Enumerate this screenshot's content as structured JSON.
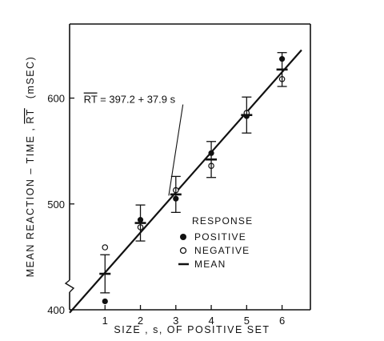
{
  "chart_data": {
    "type": "scatter",
    "xlabel": "SIZE , s, OF POSITIVE SET",
    "ylabel": "MEAN REACTION – TIME ,",
    "ylabel_symbol": "RT",
    "ylabel_unit": "(mSEC)",
    "xlim": [
      0,
      6.8
    ],
    "ylim": [
      400,
      670
    ],
    "x_ticks": [
      1,
      2,
      3,
      4,
      5,
      6
    ],
    "y_ticks": [
      400,
      500,
      600
    ],
    "grid": false,
    "axis_break_y": true,
    "series": [
      {
        "name": "POSITIVE",
        "marker": "filled-circle",
        "x": [
          1,
          2,
          3,
          4,
          5,
          6
        ],
        "y": [
          408,
          485,
          505,
          548,
          583,
          637
        ]
      },
      {
        "name": "NEGATIVE",
        "marker": "open-circle",
        "x": [
          1,
          2,
          3,
          4,
          5,
          6
        ],
        "y": [
          459,
          478,
          513,
          536,
          586,
          618
        ]
      },
      {
        "name": "MEAN",
        "marker": "dash",
        "x": [
          1,
          2,
          3,
          4,
          5,
          6
        ],
        "y": [
          434,
          482,
          509,
          542,
          584,
          627
        ],
        "error": [
          18,
          17,
          17,
          17,
          17,
          16
        ]
      }
    ],
    "fit_line": {
      "intercept": 397.2,
      "slope": 37.9,
      "x_range": [
        0,
        6.55
      ]
    },
    "annotation": {
      "prefix": "RT",
      "text": " = 397.2 + 37.9 s",
      "at_x": 1.8,
      "at_y": 600,
      "arrow_to_x": 2.8
    },
    "legend": {
      "title": "RESPONSE",
      "placement": "lower-right",
      "items": [
        "POSITIVE",
        "NEGATIVE",
        "MEAN"
      ]
    }
  }
}
